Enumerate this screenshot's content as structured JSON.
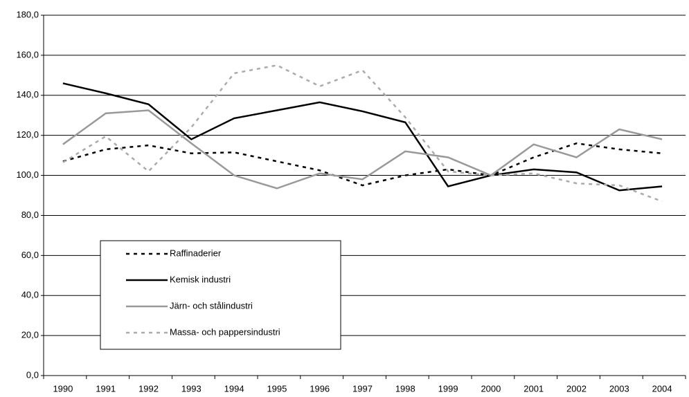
{
  "chart_data": {
    "type": "line",
    "categories": [
      "1990",
      "1991",
      "1992",
      "1993",
      "1994",
      "1995",
      "1996",
      "1997",
      "1998",
      "1999",
      "2000",
      "2001",
      "2002",
      "2003",
      "2004"
    ],
    "series": [
      {
        "name": "Raffinaderier",
        "color": "#000000",
        "dashed": true,
        "values": [
          107,
          113,
          115,
          111,
          111.5,
          107,
          102.5,
          95,
          100,
          103,
          100,
          109,
          116,
          113,
          111
        ]
      },
      {
        "name": "Kemisk industri",
        "color": "#000000",
        "dashed": false,
        "values": [
          146,
          141,
          135.5,
          118,
          128.5,
          132.5,
          136.5,
          132,
          126.5,
          94.5,
          100,
          103,
          101.5,
          92.5,
          94.5
        ]
      },
      {
        "name": "Järn- och stålindustri",
        "color": "#999999",
        "dashed": false,
        "values": [
          115.5,
          131,
          132.5,
          116,
          100,
          93.5,
          101,
          98,
          112,
          109,
          100,
          115.5,
          109,
          123,
          118
        ]
      },
      {
        "name": "Massa- och pappersindustri",
        "color": "#aaaaaa",
        "dashed": true,
        "values": [
          106.5,
          119.5,
          102,
          124,
          151,
          155,
          144.5,
          152.5,
          129,
          102,
          100,
          101,
          96,
          95,
          87
        ]
      }
    ],
    "ylim": [
      0,
      180
    ],
    "yticks": [
      {
        "value": 0,
        "label": "0,0"
      },
      {
        "value": 20,
        "label": "20,0"
      },
      {
        "value": 40,
        "label": "40,0"
      },
      {
        "value": 60,
        "label": "60,0"
      },
      {
        "value": 80,
        "label": "80,0"
      },
      {
        "value": 100,
        "label": "100,0"
      },
      {
        "value": 120,
        "label": "120,0"
      },
      {
        "value": 140,
        "label": "140,0"
      },
      {
        "value": 160,
        "label": "160,0"
      },
      {
        "value": 180,
        "label": "180,0"
      }
    ],
    "grid": true
  }
}
